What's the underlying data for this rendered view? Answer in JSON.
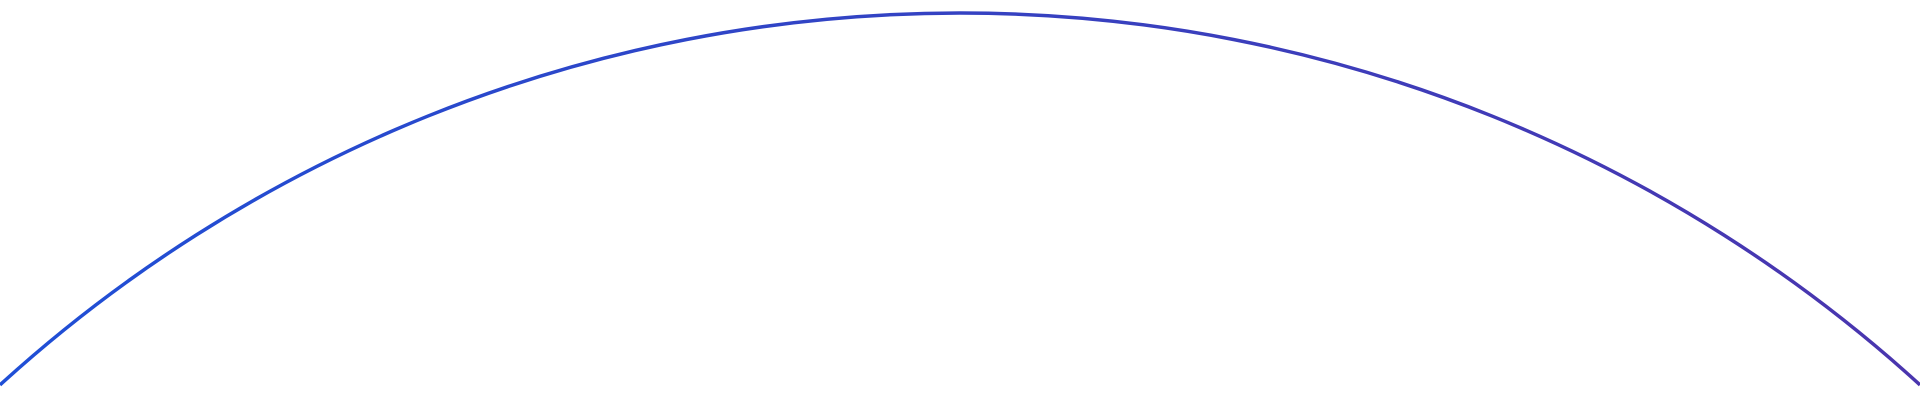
{
  "decoration": {
    "arc": {
      "gradient_start_color": "#1f4fd6",
      "gradient_end_color": "#4a35ae"
    }
  }
}
